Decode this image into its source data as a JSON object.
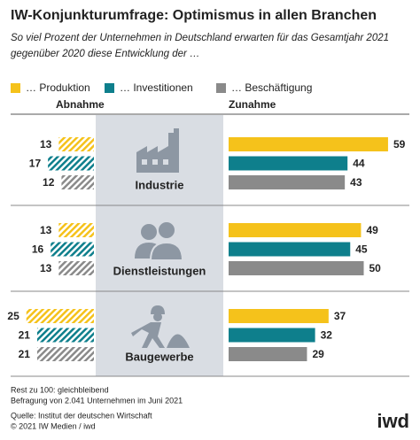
{
  "chart_data": {
    "type": "diverging_bar",
    "title": "IW-Konjunkturumfrage: Optimismus in allen Branchen",
    "subtitle": [
      "So viel Prozent der Unternehmen in Deutschland erwarten für das Gesamtjahr 2021",
      "gegenüber 2020 diese Entwicklung der …"
    ],
    "left_label": "Abnahme",
    "right_label": "Zunahme",
    "categories": [
      "Industrie",
      "Dienstleistungen",
      "Baugewerbe"
    ],
    "series": [
      {
        "name": "… Produktion",
        "color": "#f5c21b",
        "decrease": [
          13,
          13,
          25
        ],
        "increase": [
          59,
          49,
          37
        ]
      },
      {
        "name": "… Investitionen",
        "color": "#0e7f8c",
        "decrease": [
          17,
          16,
          21
        ],
        "increase": [
          44,
          45,
          32
        ]
      },
      {
        "name": "… Beschäftigung",
        "color": "#8a8a8a",
        "decrease": [
          12,
          13,
          21
        ],
        "increase": [
          43,
          50,
          29
        ]
      }
    ]
  },
  "notes": [
    "Rest zu 100: gleichbleibend",
    "Befragung von 2.041 Unternehmen im Juni 2021"
  ],
  "source": [
    "Quelle: Institut der deutschen Wirtschaft",
    "© 2021 IW Medien / iwd"
  ],
  "logo": "iwd"
}
